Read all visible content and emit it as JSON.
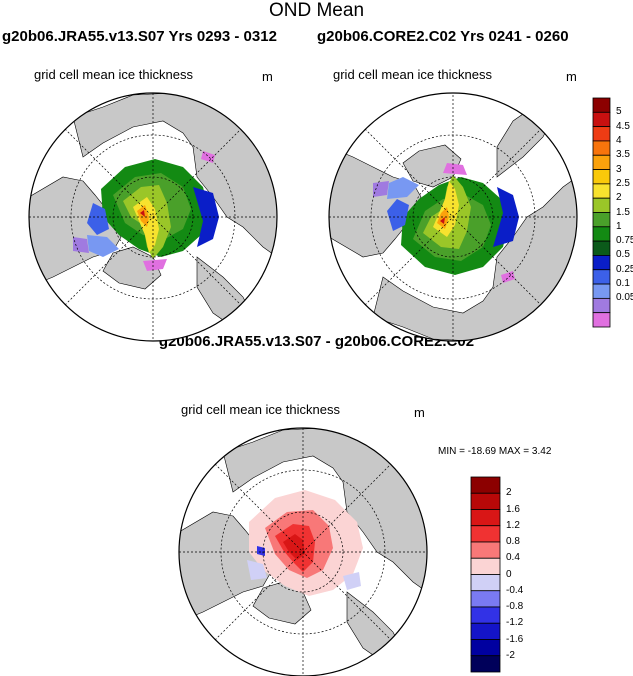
{
  "title": "OND Mean",
  "experiments": {
    "left": "g20b06.JRA55.v13.S07  Yrs 0293 - 0312",
    "right": "g20b06.CORE2.C02  Yrs 0241 - 0260"
  },
  "diff_title": "g20b06.JRA55.v13.S07 - g20b06.CORE2.C02",
  "panel_label": "grid cell mean ice thickness",
  "units": "m",
  "minmax": "MIN = -18.69 MAX =   3.42",
  "chart_data": [
    {
      "type": "heatmap",
      "projection": "north polar stereographic",
      "title": "grid cell mean ice thickness",
      "header": "g20b06.JRA55.v13.S07  Yrs 0293 - 0312",
      "units": "m",
      "field": "sea ice thickness, thickest north of Greenland / Canadian Archipelago (about 2.5-5 m), thinning to 0.05-0.5 m at ice edge"
    },
    {
      "type": "heatmap",
      "projection": "north polar stereographic",
      "title": "grid cell mean ice thickness",
      "header": "g20b06.CORE2.C02  Yrs 0241 - 0260",
      "units": "m",
      "field": "sea ice thickness, similar pattern to JRA55 run, thickest north of Canadian Archipelago"
    },
    {
      "type": "heatmap",
      "projection": "north polar stereographic",
      "title": "grid cell mean ice thickness",
      "header": "g20b06.JRA55.v13.S07 - g20b06.CORE2.C02",
      "units": "m",
      "min": -18.69,
      "max": 3.42,
      "field": "difference in ice thickness, mostly positive (0.4-2 m) in central Arctic, small negatives along Canadian Archipelago and marginal seas"
    }
  ],
  "colorbars": {
    "thickness": {
      "labels": [
        "5",
        "4.5",
        "4",
        "3.5",
        "3",
        "2.5",
        "2",
        "1.5",
        "1",
        "0.75",
        "0.5",
        "0.25",
        "0.1",
        "0.05"
      ],
      "colors": [
        "#8c0000",
        "#c81010",
        "#ee3c14",
        "#f8740c",
        "#fba20c",
        "#f9c90a",
        "#f7e22e",
        "#9ac628",
        "#4aa02a",
        "#138a13",
        "#0b5a1a",
        "#0a1ec8",
        "#3c60e8",
        "#7898f2",
        "#a07ae0",
        "#e070e0"
      ]
    },
    "difference": {
      "labels": [
        "2",
        "1.6",
        "1.2",
        "0.8",
        "0.4",
        "0",
        "-0.4",
        "-0.8",
        "-1.2",
        "-1.6",
        "-2"
      ],
      "colors": [
        "#8c0000",
        "#b80808",
        "#d91616",
        "#f03232",
        "#f87878",
        "#fbd4d4",
        "#d0d0f6",
        "#7a7af2",
        "#3232e6",
        "#1414c8",
        "#0000a0",
        "#00005a"
      ]
    }
  },
  "colors": {
    "land": "#c8c8c8",
    "ocean": "#ffffff",
    "grid": "#000000"
  }
}
